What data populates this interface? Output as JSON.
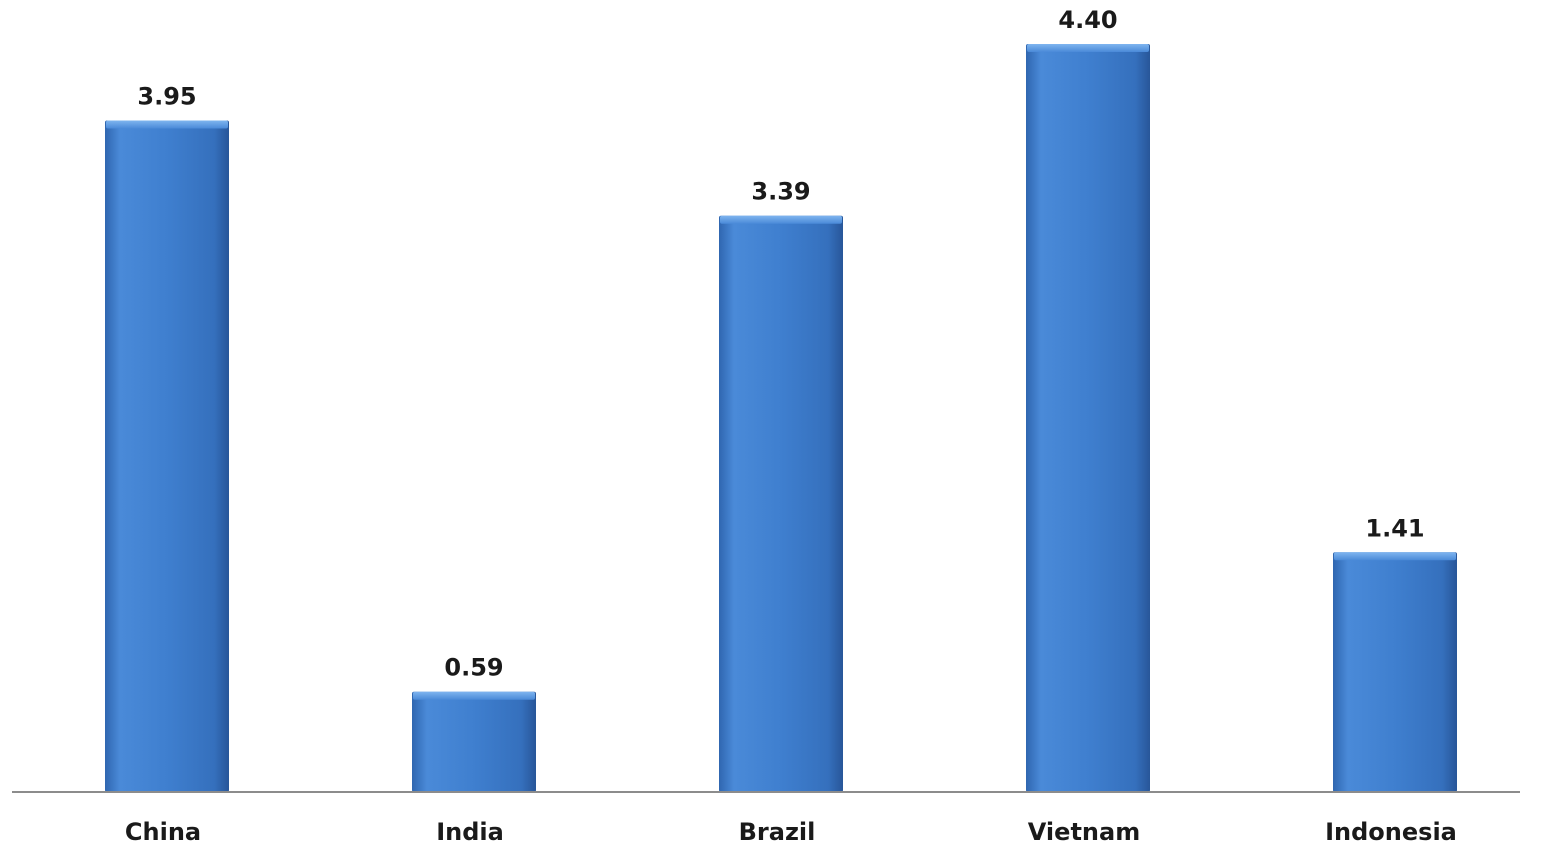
{
  "chart_data": {
    "type": "bar",
    "title": "",
    "xlabel": "",
    "ylabel": "",
    "categories": [
      "China",
      "India",
      "Brazil",
      "Vietnam",
      "Indonesia"
    ],
    "values": [
      3.95,
      0.59,
      3.39,
      4.4,
      1.41
    ],
    "value_labels": [
      "3.95",
      "0.59",
      "3.39",
      "4.40",
      "1.41"
    ],
    "ylim": [
      0,
      4.4
    ],
    "grid": false,
    "legend": "none",
    "colors": {
      "bar_light": "#5b9be3",
      "bar_main": "#3f7fcf",
      "bar_dark": "#2a5da3",
      "axis": "#8c8c8c"
    }
  }
}
